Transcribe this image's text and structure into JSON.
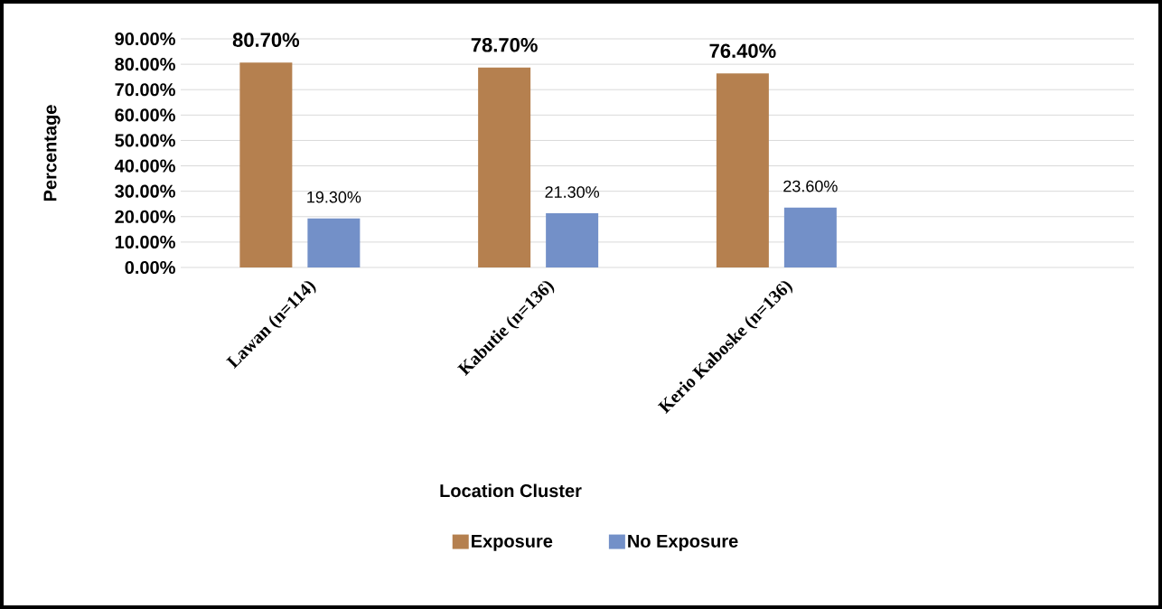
{
  "chart_data": {
    "type": "bar",
    "xlabel": "Location Cluster",
    "ylabel": "Percentage",
    "categories": [
      "Lawan  (n=114)",
      "Kabutie (n=136)",
      "Kerio Kaboske (n=136)",
      null
    ],
    "series": [
      {
        "name": "Exposure",
        "color": "#b5804f",
        "values": [
          80.7,
          78.7,
          76.4,
          null
        ],
        "value_labels": [
          "80.70%",
          "78.70%",
          "76.40%",
          null
        ]
      },
      {
        "name": "No Exposure",
        "color": "#7390c8",
        "values": [
          19.3,
          21.3,
          23.6,
          null
        ],
        "value_labels": [
          "19.30%",
          "21.30%",
          "23.60%",
          null
        ]
      }
    ],
    "ylim": [
      0,
      90
    ],
    "yticks": [
      {
        "value": 0,
        "label": "0.00%"
      },
      {
        "value": 10,
        "label": "10.00%"
      },
      {
        "value": 20,
        "label": "20.00%"
      },
      {
        "value": 30,
        "label": "30.00%"
      },
      {
        "value": 40,
        "label": "40.00%"
      },
      {
        "value": 50,
        "label": "50.00%"
      },
      {
        "value": 60,
        "label": "60.00%"
      },
      {
        "value": 70,
        "label": "70.00%"
      },
      {
        "value": 80,
        "label": "80.00%"
      },
      {
        "value": 90,
        "label": "90.00%"
      }
    ],
    "grid": "y",
    "legend": "bottom"
  }
}
